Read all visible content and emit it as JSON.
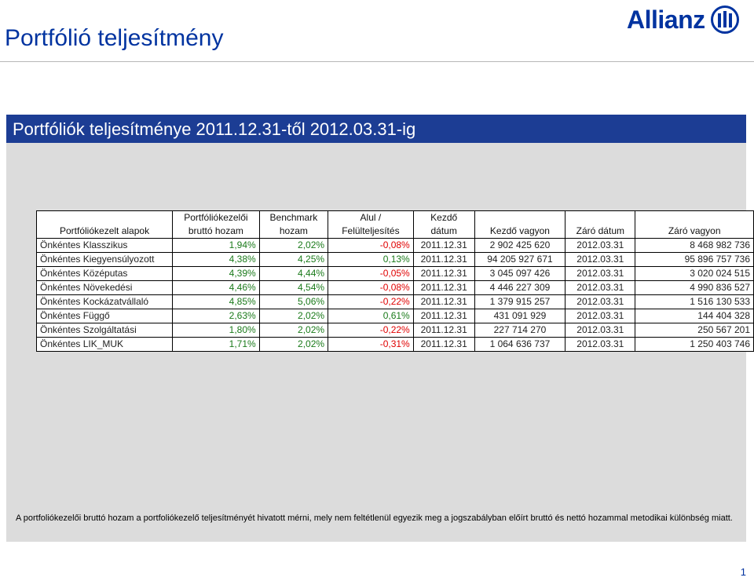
{
  "page": {
    "title": "Portfólió teljesítmény",
    "page_number": "1"
  },
  "logo": {
    "text": "Allianz",
    "brand_color": "#0033a0"
  },
  "section": {
    "heading": "Portfóliók teljesítménye 2011.12.31-től 2012.03.31-ig"
  },
  "table": {
    "headers": [
      [
        "",
        "Portfóliókezelt alapok"
      ],
      [
        "Portfóliókezelői",
        "bruttó hozam"
      ],
      [
        "Benchmark",
        "hozam"
      ],
      [
        "Alul /",
        "Felülteljesítés"
      ],
      [
        "Kezdő",
        "dátum"
      ],
      [
        "",
        "Kezdő vagyon"
      ],
      [
        "",
        "Záró dátum"
      ],
      [
        "",
        "Záró vagyon"
      ]
    ],
    "rows": [
      [
        "Önkéntes Klasszikus",
        "1,94%",
        "2,02%",
        "-0,08%",
        "2011.12.31",
        "2 902 425 620",
        "2012.03.31",
        "8 468 982 736"
      ],
      [
        "Önkéntes Kiegyensúlyozott",
        "4,38%",
        "4,25%",
        "0,13%",
        "2011.12.31",
        "94 205 927 671",
        "2012.03.31",
        "95 896 757 736"
      ],
      [
        "Önkéntes Középutas",
        "4,39%",
        "4,44%",
        "-0,05%",
        "2011.12.31",
        "3 045 097 426",
        "2012.03.31",
        "3 020 024 515"
      ],
      [
        "Önkéntes Növekedési",
        "4,46%",
        "4,54%",
        "-0,08%",
        "2011.12.31",
        "4 446 227 309",
        "2012.03.31",
        "4 990 836 527"
      ],
      [
        "Önkéntes Kockázatvállaló",
        "4,85%",
        "5,06%",
        "-0,22%",
        "2011.12.31",
        "1 379 915 257",
        "2012.03.31",
        "1 516 130 533"
      ],
      [
        "Önkéntes Függő",
        "2,63%",
        "2,02%",
        "0,61%",
        "2011.12.31",
        "431 091 929",
        "2012.03.31",
        "144 404 328"
      ],
      [
        "Önkéntes Szolgáltatási",
        "1,80%",
        "2,02%",
        "-0,22%",
        "2011.12.31",
        "227 714 270",
        "2012.03.31",
        "250 567 201"
      ],
      [
        "Önkéntes LIK_MUK",
        "1,71%",
        "2,02%",
        "-0,31%",
        "2011.12.31",
        "1 064 636 737",
        "2012.03.31",
        "1 250 403 746"
      ]
    ]
  },
  "footnote": "A portfoliókezelői bruttó hozam a portfoliókezelő teljesítményét hivatott mérni, mely nem feltétlenül egyezik meg a jogszabályban előírt bruttó és nettó hozammal metodikai különbség miatt.",
  "colors": {
    "band": "#1c3d94",
    "positive": "#1a7a1a",
    "negative": "#e00000",
    "panel": "#dcdcdc"
  }
}
